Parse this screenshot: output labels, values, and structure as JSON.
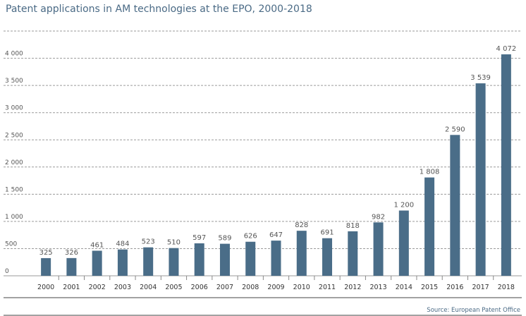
{
  "chart_data": {
    "type": "bar",
    "title": "Patent applications in AM technologies at the EPO, 2000-2018",
    "source": "Source: European Patent Office",
    "categories": [
      "2000",
      "2001",
      "2002",
      "2003",
      "2004",
      "2005",
      "2006",
      "2007",
      "2008",
      "2009",
      "2010",
      "2011",
      "2012",
      "2013",
      "2014",
      "2015",
      "2016",
      "2017",
      "2018"
    ],
    "values": [
      325,
      326,
      461,
      484,
      523,
      510,
      597,
      589,
      626,
      647,
      828,
      691,
      818,
      982,
      1200,
      1808,
      2590,
      3539,
      4072
    ],
    "value_labels": [
      "325",
      "326",
      "461",
      "484",
      "523",
      "510",
      "597",
      "589",
      "626",
      "647",
      "828",
      "691",
      "818",
      "982",
      "1 200",
      "1 808",
      "2 590",
      "3 539",
      "4 072"
    ],
    "y_ticks": [
      0,
      500,
      1000,
      1500,
      2000,
      2500,
      3000,
      3500,
      4000
    ],
    "y_tick_labels": [
      "0",
      "500",
      "1 000",
      "1 500",
      "2 000",
      "2 500",
      "3 000",
      "3 500",
      "4 000"
    ],
    "ylim": [
      0,
      4500
    ],
    "grid": true,
    "xlabel": "",
    "ylabel": "",
    "colors": {
      "bar": "#4a6d88",
      "title": "#4a6a85",
      "text": "#555555",
      "grid": "#9a9a9a"
    }
  }
}
